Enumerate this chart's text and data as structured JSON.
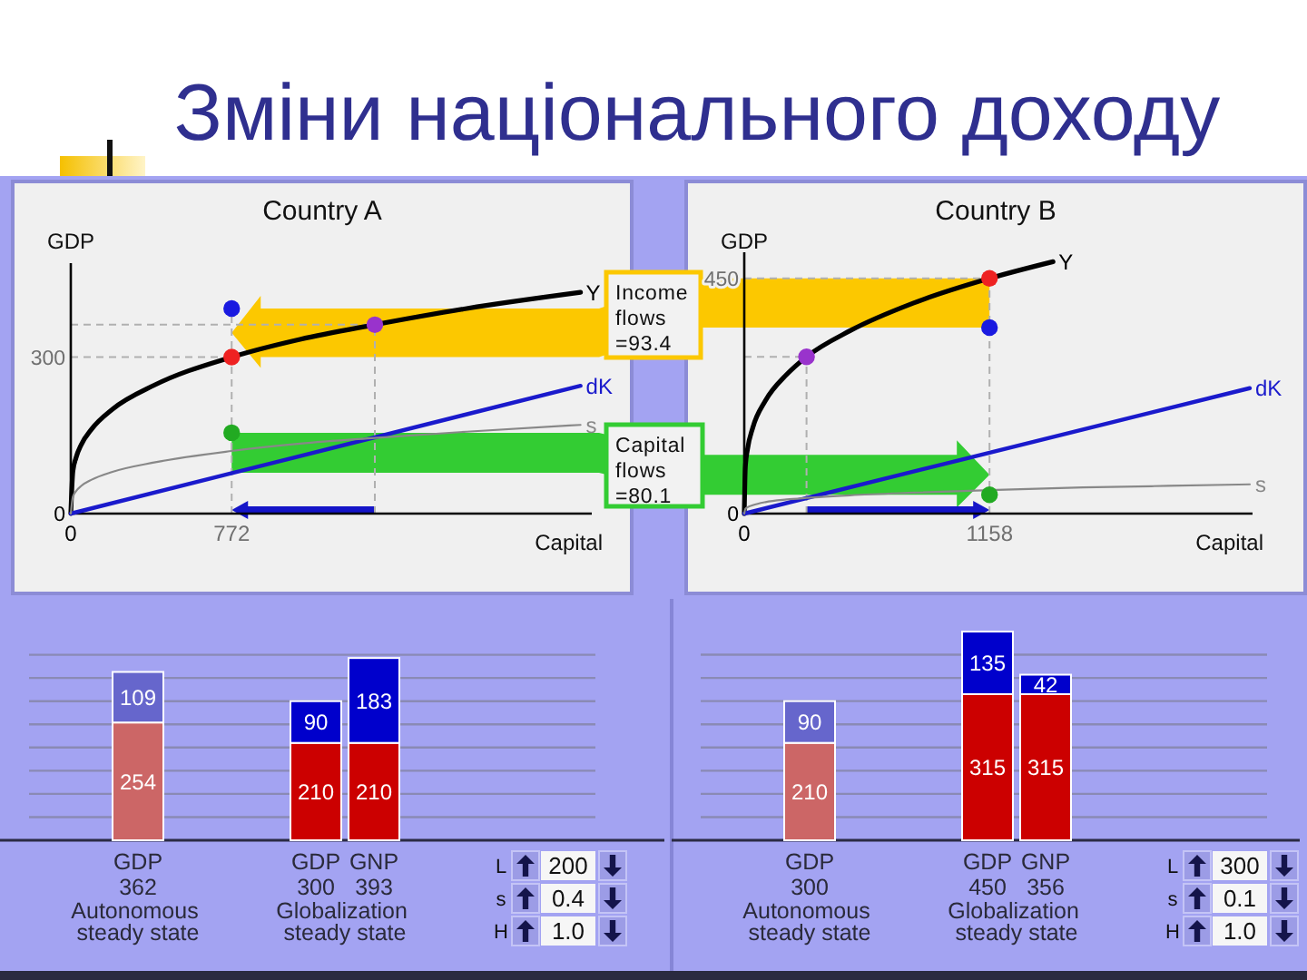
{
  "chart_data": [
    {
      "type": "other",
      "title": "Зміни національного доходу"
    },
    {
      "type": "line",
      "title": "Country A",
      "xlabel": "Capital",
      "ylabel": "GDP",
      "xlim": [
        0,
        2500
      ],
      "ylim": [
        0,
        480
      ],
      "xticks": [
        0,
        772
      ],
      "yticks": [
        0,
        300
      ],
      "series": [
        {
          "name": "Y",
          "color": "#000000",
          "x": [
            0,
            10,
            25,
            50,
            100,
            200,
            400,
            772,
            1100,
            1459,
            1900,
            2446
          ],
          "values": [
            0,
            81,
            107,
            132,
            162,
            200,
            246,
            300,
            334,
            362,
            393,
            424
          ]
        },
        {
          "name": "dK",
          "color": "#1a1acc",
          "x": [
            0,
            2446
          ],
          "values": [
            0,
            245
          ]
        },
        {
          "name": "s",
          "color": "#888888",
          "x": [
            0,
            10,
            25,
            50,
            100,
            200,
            400,
            772,
            1100,
            1459,
            1900,
            2446
          ],
          "values": [
            0,
            32,
            43,
            53,
            65,
            80,
            98,
            120,
            134,
            145,
            157,
            170
          ]
        },
        {
          "type": "scatter",
          "x": [
            772,
            772,
            1459,
            772
          ],
          "values": [
            300,
            393,
            362,
            155
          ],
          "colors": [
            "#ee2222",
            "#1a1ae0",
            "#9933cc",
            "#22aa22"
          ]
        }
      ],
      "ref_lines": [
        {
          "axis": "x",
          "value": 772,
          "color": "#b0b0b0",
          "line_style": "dashed"
        },
        {
          "axis": "x",
          "value": 1459,
          "color": "#b0b0b0",
          "line_style": "dashed"
        },
        {
          "axis": "y",
          "value": 300,
          "color": "#b0b0b0",
          "line_style": "dashed"
        },
        {
          "axis": "y",
          "value": 362,
          "color": "#b0b0b0",
          "line_style": "dashed"
        }
      ],
      "annotations": [
        "Income flows =93.4",
        "Capital flows =80.1"
      ]
    },
    {
      "type": "line",
      "title": "Country B",
      "xlabel": "Capital",
      "ylabel": "GDP",
      "xlim": [
        0,
        2400
      ],
      "ylim": [
        0,
        500
      ],
      "xticks": [
        0,
        1158
      ],
      "yticks": [
        0,
        450
      ],
      "series": [
        {
          "name": "Y",
          "color": "#000000",
          "x": [
            0,
            5,
            15,
            40,
            100,
            200,
            294,
            500,
            800,
            1158,
            1458
          ],
          "values": [
            0,
            88,
            122,
            164,
            216,
            266,
            300,
            350,
            403,
            450,
            482
          ]
        },
        {
          "name": "dK",
          "color": "#1a1acc",
          "x": [
            0,
            2387
          ],
          "values": [
            0,
            240
          ]
        },
        {
          "name": "s",
          "color": "#888888",
          "x": [
            0,
            5,
            15,
            40,
            100,
            200,
            294,
            500,
            800,
            1158,
            1600,
            2000,
            2387
          ],
          "values": [
            0,
            9,
            12,
            16,
            22,
            27,
            30,
            35,
            40,
            45,
            50,
            53,
            56
          ]
        },
        {
          "type": "scatter",
          "x": [
            1158,
            1158,
            294,
            1158
          ],
          "values": [
            450,
            356,
            300,
            36
          ],
          "colors": [
            "#ee2222",
            "#1a1ae0",
            "#9933cc",
            "#22aa22"
          ]
        }
      ],
      "ref_lines": [
        {
          "axis": "x",
          "value": 1158,
          "color": "#b0b0b0",
          "line_style": "dashed"
        },
        {
          "axis": "x",
          "value": 294,
          "color": "#b0b0b0",
          "line_style": "dashed"
        },
        {
          "axis": "y",
          "value": 450,
          "color": "#b0b0b0",
          "line_style": "dashed"
        },
        {
          "axis": "y",
          "value": 300,
          "color": "#b0b0b0",
          "line_style": "dashed"
        }
      ]
    },
    {
      "type": "bar",
      "stacked": true,
      "categories": [
        "GDP",
        "GDP",
        "GNP"
      ],
      "series": [
        {
          "values": [
            254,
            210,
            210
          ],
          "colors": [
            "#cc6666",
            "#cc0000",
            "#cc0000"
          ]
        },
        {
          "values": [
            109,
            90,
            183
          ],
          "colors": [
            "#6666cc",
            "#0000cc",
            "#0000cc"
          ]
        }
      ],
      "ylim": [
        0,
        400
      ],
      "yticks": [
        {
          "value": 50,
          "label": null
        },
        {
          "value": 100,
          "label": null
        },
        {
          "value": 150,
          "label": null
        },
        {
          "value": 200,
          "label": null
        },
        {
          "value": 250,
          "label": null
        },
        {
          "value": 300,
          "label": null
        },
        {
          "value": 350,
          "label": null
        },
        {
          "value": 400,
          "label": null
        }
      ],
      "grid": "y",
      "tick_labels": "x",
      "data_labels": true,
      "totals": [
        "362",
        "300",
        "393"
      ],
      "annotations": [
        "Autonomous steady state",
        "Globalization steady state"
      ]
    },
    {
      "type": "other",
      "annotations": [
        "L",
        "200",
        "s",
        "0.4",
        "H",
        "1.0"
      ]
    },
    {
      "type": "bar",
      "stacked": true,
      "categories": [
        "GDP",
        "GDP",
        "GNP"
      ],
      "series": [
        {
          "values": [
            210,
            315,
            315
          ],
          "colors": [
            "#cc6666",
            "#cc0000",
            "#cc0000"
          ]
        },
        {
          "values": [
            90,
            135,
            42
          ],
          "colors": [
            "#6666cc",
            "#0000cc",
            "#0000cc"
          ]
        }
      ],
      "ylim": [
        0,
        450
      ],
      "yticks": [
        {
          "value": 50,
          "label": null
        },
        {
          "value": 100,
          "label": null
        },
        {
          "value": 150,
          "label": null
        },
        {
          "value": 200,
          "label": null
        },
        {
          "value": 250,
          "label": null
        },
        {
          "value": 300,
          "label": null
        },
        {
          "value": 350,
          "label": null
        },
        {
          "value": 400,
          "label": null
        }
      ],
      "grid": "y",
      "tick_labels": "x",
      "data_labels": true,
      "totals": [
        "300",
        "450",
        "356"
      ],
      "annotations": [
        "Autonomous steady state",
        "Globalization steady state"
      ]
    },
    {
      "type": "other",
      "annotations": [
        "L",
        "300",
        "s",
        "0.1",
        "H",
        "1.0"
      ]
    }
  ]
}
